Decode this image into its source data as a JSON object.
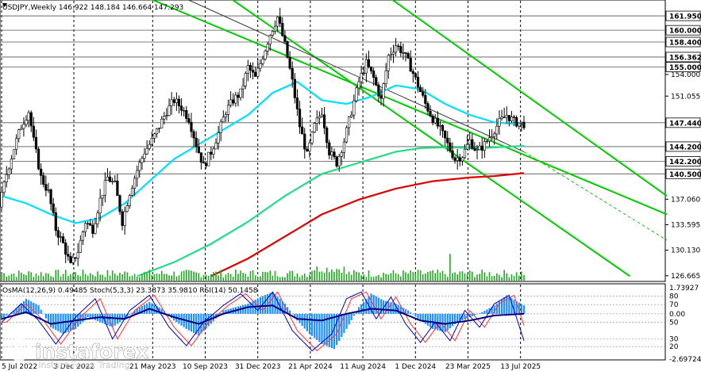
{
  "header": {
    "symbol_line": "USDJPY,Weekly  146.922 148.184 146.664 147.293"
  },
  "indicator_header": "OsMA(12,26,9) 0.49485  Stoch(5,3,3) 23.3873 35.9810  RSI(14) 50.1458",
  "watermark": {
    "brand": "instaforex",
    "tagline": "Instant Forex Trading"
  },
  "colors": {
    "up_candle": "#ffffff",
    "down_candle": "#000000",
    "ma_fast": "#00e0ff",
    "ma_mid": "#22dd88",
    "ma_slow": "#e00000",
    "channel": "#00cc00",
    "trend": "#333333",
    "osma": "#1e90ff",
    "stoch_main": "#0000cc",
    "rsi": "#000080",
    "stoch_signal": "#ff3333",
    "level_box": "#ffffff"
  },
  "chart_data": {
    "type": "candlestick",
    "symbol": "USDJPY",
    "timeframe": "Weekly",
    "last_bar": {
      "open": 146.922,
      "high": 148.184,
      "low": 146.664,
      "close": 147.293
    },
    "x_tick_labels": [
      "5 Jul 2022",
      "3 Dec 2022",
      "21 May 2023",
      "10 Sep 2023",
      "31 Dec 2023",
      "21 Apr 2024",
      "11 Aug 2024",
      "1 Dec 2024",
      "23 Mar 2025",
      "13 Jul 2025"
    ],
    "y_axis": {
      "min": 126.0,
      "max": 164.0,
      "tick_labels": [
        "154.000",
        "151.055",
        "137.060",
        "133.595",
        "130.130",
        "126.665"
      ],
      "tick_values": [
        154.0,
        151.055,
        137.06,
        133.595,
        130.13,
        126.665
      ]
    },
    "highlighted_levels": [
      {
        "label": "161.950",
        "value": 161.95
      },
      {
        "label": "160.000",
        "value": 160.0
      },
      {
        "label": "158.400",
        "value": 158.4
      },
      {
        "label": "156.362",
        "value": 156.362
      },
      {
        "label": "155.000",
        "value": 155.0
      },
      {
        "label": "147.440",
        "value": 147.44
      },
      {
        "label": "144.200",
        "value": 144.2
      },
      {
        "label": "142.200",
        "value": 142.2
      },
      {
        "label": "140.500",
        "value": 140.5
      }
    ],
    "price_path": [
      [
        0,
        136.0
      ],
      [
        3,
        140.5
      ],
      [
        6,
        144.0
      ],
      [
        9,
        147.0
      ],
      [
        12,
        149.0
      ],
      [
        14,
        145.0
      ],
      [
        17,
        140.0
      ],
      [
        20,
        138.0
      ],
      [
        23,
        133.0
      ],
      [
        26,
        131.0
      ],
      [
        29,
        128.0
      ],
      [
        32,
        130.0
      ],
      [
        35,
        134.0
      ],
      [
        38,
        133.0
      ],
      [
        41,
        137.0
      ],
      [
        44,
        140.0
      ],
      [
        47,
        139.0
      ],
      [
        50,
        134.0
      ],
      [
        53,
        138.0
      ],
      [
        56,
        141.0
      ],
      [
        59,
        143.5
      ],
      [
        62,
        145.0
      ],
      [
        65,
        147.0
      ],
      [
        68,
        149.0
      ],
      [
        71,
        150.5
      ],
      [
        74,
        149.5
      ],
      [
        77,
        148.0
      ],
      [
        80,
        144.5
      ],
      [
        83,
        141.5
      ],
      [
        86,
        143.5
      ],
      [
        89,
        146.0
      ],
      [
        92,
        149.0
      ],
      [
        95,
        150.5
      ],
      [
        98,
        151.5
      ],
      [
        101,
        155.0
      ],
      [
        104,
        153.5
      ],
      [
        107,
        156.5
      ],
      [
        110,
        159.5
      ],
      [
        113,
        161.8
      ],
      [
        116,
        158.0
      ],
      [
        119,
        153.0
      ],
      [
        122,
        147.0
      ],
      [
        125,
        143.0
      ],
      [
        128,
        147.0
      ],
      [
        131,
        149.0
      ],
      [
        134,
        143.5
      ],
      [
        137,
        142.0
      ],
      [
        140,
        145.0
      ],
      [
        143,
        149.0
      ],
      [
        146,
        153.0
      ],
      [
        149,
        155.5
      ],
      [
        152,
        153.5
      ],
      [
        155,
        150.5
      ],
      [
        158,
        156.5
      ],
      [
        161,
        158.0
      ],
      [
        164,
        157.0
      ],
      [
        167,
        155.0
      ],
      [
        170,
        152.5
      ],
      [
        173,
        150.0
      ],
      [
        176,
        148.0
      ],
      [
        179,
        146.5
      ],
      [
        182,
        144.5
      ],
      [
        185,
        142.5
      ],
      [
        188,
        143.0
      ],
      [
        191,
        145.0
      ],
      [
        194,
        143.5
      ],
      [
        197,
        144.5
      ],
      [
        200,
        146.0
      ],
      [
        203,
        147.5
      ],
      [
        206,
        148.5
      ],
      [
        209,
        147.6
      ],
      [
        212,
        147.29
      ]
    ],
    "series": [
      {
        "name": "MA fast",
        "color_key": "ma_fast",
        "points": [
          [
            0,
            137.5
          ],
          [
            10,
            136.5
          ],
          [
            20,
            135.0
          ],
          [
            30,
            133.8
          ],
          [
            40,
            134.5
          ],
          [
            50,
            136.5
          ],
          [
            60,
            139.5
          ],
          [
            70,
            142.5
          ],
          [
            80,
            144.5
          ],
          [
            90,
            146.5
          ],
          [
            100,
            148.5
          ],
          [
            110,
            151.5
          ],
          [
            120,
            153.0
          ],
          [
            130,
            150.5
          ],
          [
            140,
            150.0
          ],
          [
            150,
            151.0
          ],
          [
            160,
            152.5
          ],
          [
            170,
            152.0
          ],
          [
            180,
            150.0
          ],
          [
            190,
            148.5
          ],
          [
            200,
            147.5
          ],
          [
            212,
            147.2
          ]
        ]
      },
      {
        "name": "MA mid",
        "color_key": "ma_mid",
        "points": [
          [
            55,
            126.6
          ],
          [
            70,
            128.5
          ],
          [
            85,
            131.0
          ],
          [
            100,
            134.0
          ],
          [
            115,
            137.5
          ],
          [
            130,
            140.5
          ],
          [
            140,
            141.5
          ],
          [
            150,
            142.5
          ],
          [
            160,
            143.5
          ],
          [
            170,
            144.0
          ],
          [
            180,
            144.1
          ],
          [
            195,
            144.0
          ],
          [
            212,
            144.3
          ]
        ]
      },
      {
        "name": "MA slow",
        "color_key": "ma_slow",
        "points": [
          [
            85,
            126.6
          ],
          [
            100,
            129.0
          ],
          [
            115,
            132.0
          ],
          [
            130,
            135.0
          ],
          [
            145,
            137.0
          ],
          [
            160,
            138.5
          ],
          [
            175,
            139.5
          ],
          [
            190,
            140.0
          ],
          [
            200,
            140.2
          ],
          [
            212,
            140.6
          ]
        ]
      }
    ],
    "channels": [
      {
        "name": "channel upper",
        "from": [
          55,
          165.0
        ],
        "to": [
          270,
          135.0
        ]
      },
      {
        "name": "channel mid",
        "from": [
          90,
          165.0
        ],
        "to": [
          255,
          126.6
        ]
      },
      {
        "name": "channel lower",
        "from": [
          155,
          165.0
        ],
        "to": [
          270,
          137.5
        ]
      },
      {
        "name": "trend line",
        "from": [
          70,
          165.0
        ],
        "to": [
          212,
          143.5
        ]
      },
      {
        "name": "trend line dashed",
        "from": [
          212,
          143.5
        ],
        "to": [
          270,
          131.5
        ]
      }
    ],
    "indicator_panel": {
      "right_labels": [
        "1.73927",
        "80",
        "70",
        "0.00",
        "50",
        "30",
        "20",
        "-2.69724"
      ],
      "range": [
        -2.69724,
        1.73927
      ],
      "levels": [
        {
          "label": "1.73927",
          "value": 1.73927
        },
        {
          "label": "80",
          "value": 1.05
        },
        {
          "label": "70",
          "value": 0.55
        },
        {
          "label": "0.00",
          "value": 0.0
        },
        {
          "label": "50",
          "value": -0.5
        },
        {
          "label": "30",
          "value": -1.5
        },
        {
          "label": "20",
          "value": -1.95
        },
        {
          "label": "-2.69724",
          "value": -2.69724
        }
      ],
      "osma": [
        [
          0,
          -0.3
        ],
        [
          5,
          0.2
        ],
        [
          10,
          0.9
        ],
        [
          15,
          0.5
        ],
        [
          20,
          -0.8
        ],
        [
          25,
          -1.2
        ],
        [
          30,
          -0.9
        ],
        [
          35,
          -0.2
        ],
        [
          40,
          -0.5
        ],
        [
          45,
          -0.8
        ],
        [
          50,
          -0.3
        ],
        [
          55,
          0.3
        ],
        [
          60,
          0.7
        ],
        [
          65,
          0.3
        ],
        [
          70,
          -0.4
        ],
        [
          75,
          -0.9
        ],
        [
          80,
          -1.3
        ],
        [
          85,
          -0.6
        ],
        [
          90,
          0.2
        ],
        [
          95,
          0.4
        ],
        [
          100,
          0.6
        ],
        [
          105,
          1.0
        ],
        [
          110,
          1.3
        ],
        [
          115,
          0.6
        ],
        [
          120,
          -0.4
        ],
        [
          125,
          -1.2
        ],
        [
          130,
          -1.8
        ],
        [
          135,
          -2.1
        ],
        [
          140,
          -0.9
        ],
        [
          145,
          0.4
        ],
        [
          150,
          1.2
        ],
        [
          155,
          0.8
        ],
        [
          160,
          0.6
        ],
        [
          165,
          0.2
        ],
        [
          170,
          -0.4
        ],
        [
          175,
          -0.9
        ],
        [
          180,
          -1.1
        ],
        [
          185,
          -0.5
        ],
        [
          190,
          -0.2
        ],
        [
          195,
          0.1
        ],
        [
          200,
          0.5
        ],
        [
          205,
          1.1
        ],
        [
          212,
          0.5
        ]
      ],
      "stoch": [
        [
          0,
          -0.5
        ],
        [
          8,
          0.6
        ],
        [
          15,
          -0.4
        ],
        [
          22,
          -1.8
        ],
        [
          30,
          -0.2
        ],
        [
          38,
          0.9
        ],
        [
          45,
          -1.5
        ],
        [
          52,
          0.2
        ],
        [
          60,
          1.1
        ],
        [
          68,
          -0.8
        ],
        [
          75,
          -1.9
        ],
        [
          82,
          -0.5
        ],
        [
          90,
          0.5
        ],
        [
          97,
          1.2
        ],
        [
          104,
          0.2
        ],
        [
          110,
          1.3
        ],
        [
          118,
          -1.0
        ],
        [
          126,
          -2.2
        ],
        [
          134,
          -1.2
        ],
        [
          140,
          0.9
        ],
        [
          146,
          1.3
        ],
        [
          152,
          -0.3
        ],
        [
          158,
          1.0
        ],
        [
          164,
          -0.6
        ],
        [
          170,
          -1.7
        ],
        [
          176,
          -0.5
        ],
        [
          182,
          -1.6
        ],
        [
          188,
          0.2
        ],
        [
          194,
          -0.8
        ],
        [
          200,
          0.6
        ],
        [
          206,
          1.1
        ],
        [
          212,
          -1.6
        ]
      ],
      "rsi": [
        [
          0,
          -0.3
        ],
        [
          10,
          0.1
        ],
        [
          20,
          -0.6
        ],
        [
          30,
          -0.4
        ],
        [
          40,
          -0.2
        ],
        [
          50,
          -0.3
        ],
        [
          60,
          0.3
        ],
        [
          70,
          -0.2
        ],
        [
          80,
          -0.6
        ],
        [
          90,
          0.0
        ],
        [
          100,
          0.4
        ],
        [
          110,
          0.5
        ],
        [
          120,
          -0.3
        ],
        [
          130,
          -0.4
        ],
        [
          140,
          0.0
        ],
        [
          150,
          0.3
        ],
        [
          160,
          0.2
        ],
        [
          170,
          -0.4
        ],
        [
          180,
          -0.6
        ],
        [
          190,
          -0.4
        ],
        [
          200,
          -0.1
        ],
        [
          212,
          0.0
        ]
      ]
    }
  }
}
